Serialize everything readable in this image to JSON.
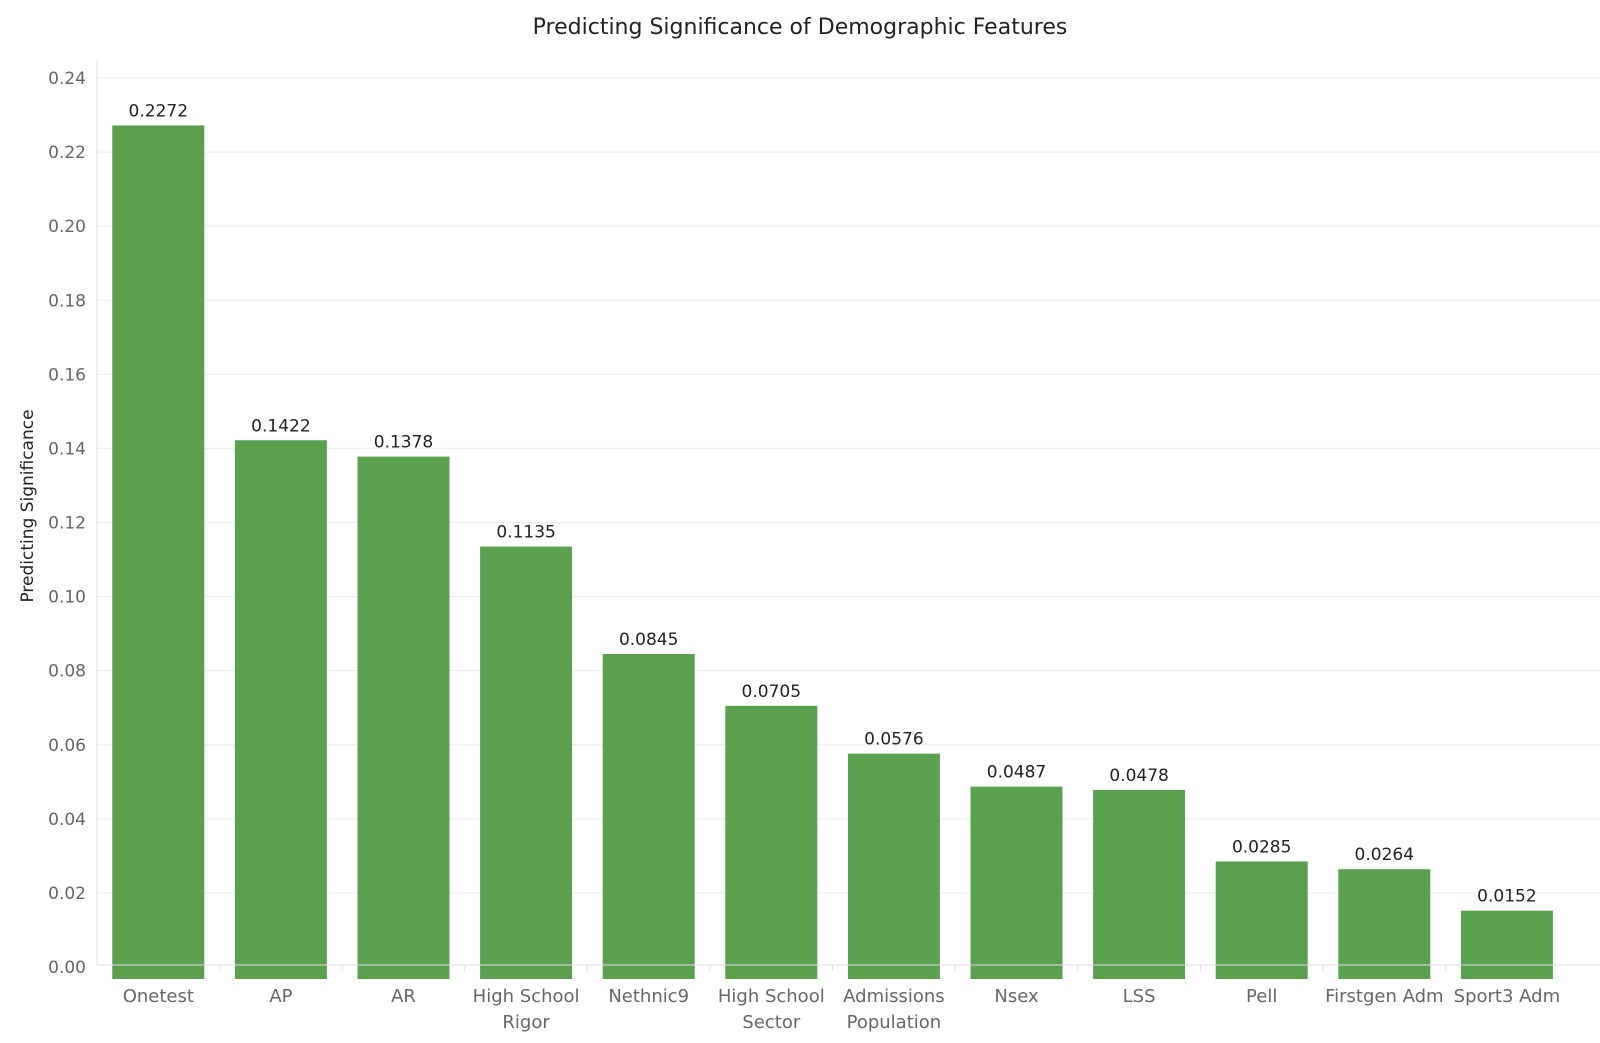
{
  "chart_data": {
    "type": "bar",
    "title": "Predicting Significance of Demographic Features",
    "ylabel": "Predicting Significance",
    "xlabel": "",
    "categories": [
      [
        "Onetest"
      ],
      [
        "AP"
      ],
      [
        "AR"
      ],
      [
        "High School",
        "Rigor"
      ],
      [
        "Nethnic9"
      ],
      [
        "High School",
        "Sector"
      ],
      [
        "Admissions",
        "Population"
      ],
      [
        "Nsex"
      ],
      [
        "LSS"
      ],
      [
        "Pell"
      ],
      [
        "Firstgen Adm"
      ],
      [
        "Sport3 Adm"
      ]
    ],
    "values": [
      0.2272,
      0.1422,
      0.1378,
      0.1135,
      0.0845,
      0.0705,
      0.0576,
      0.0487,
      0.0478,
      0.0285,
      0.0264,
      0.0152
    ],
    "value_labels": [
      "0.2272",
      "0.1422",
      "0.1378",
      "0.1135",
      "0.0845",
      "0.0705",
      "0.0576",
      "0.0487",
      "0.0478",
      "0.0285",
      "0.0264",
      "0.0152"
    ],
    "ylim": [
      0,
      0.24
    ],
    "yticks": [
      "0.00",
      "0.02",
      "0.04",
      "0.06",
      "0.08",
      "0.10",
      "0.12",
      "0.14",
      "0.16",
      "0.18",
      "0.20",
      "0.22",
      "0.24"
    ],
    "grid": true,
    "legend": "none",
    "bar_color": "#5aa04f"
  }
}
